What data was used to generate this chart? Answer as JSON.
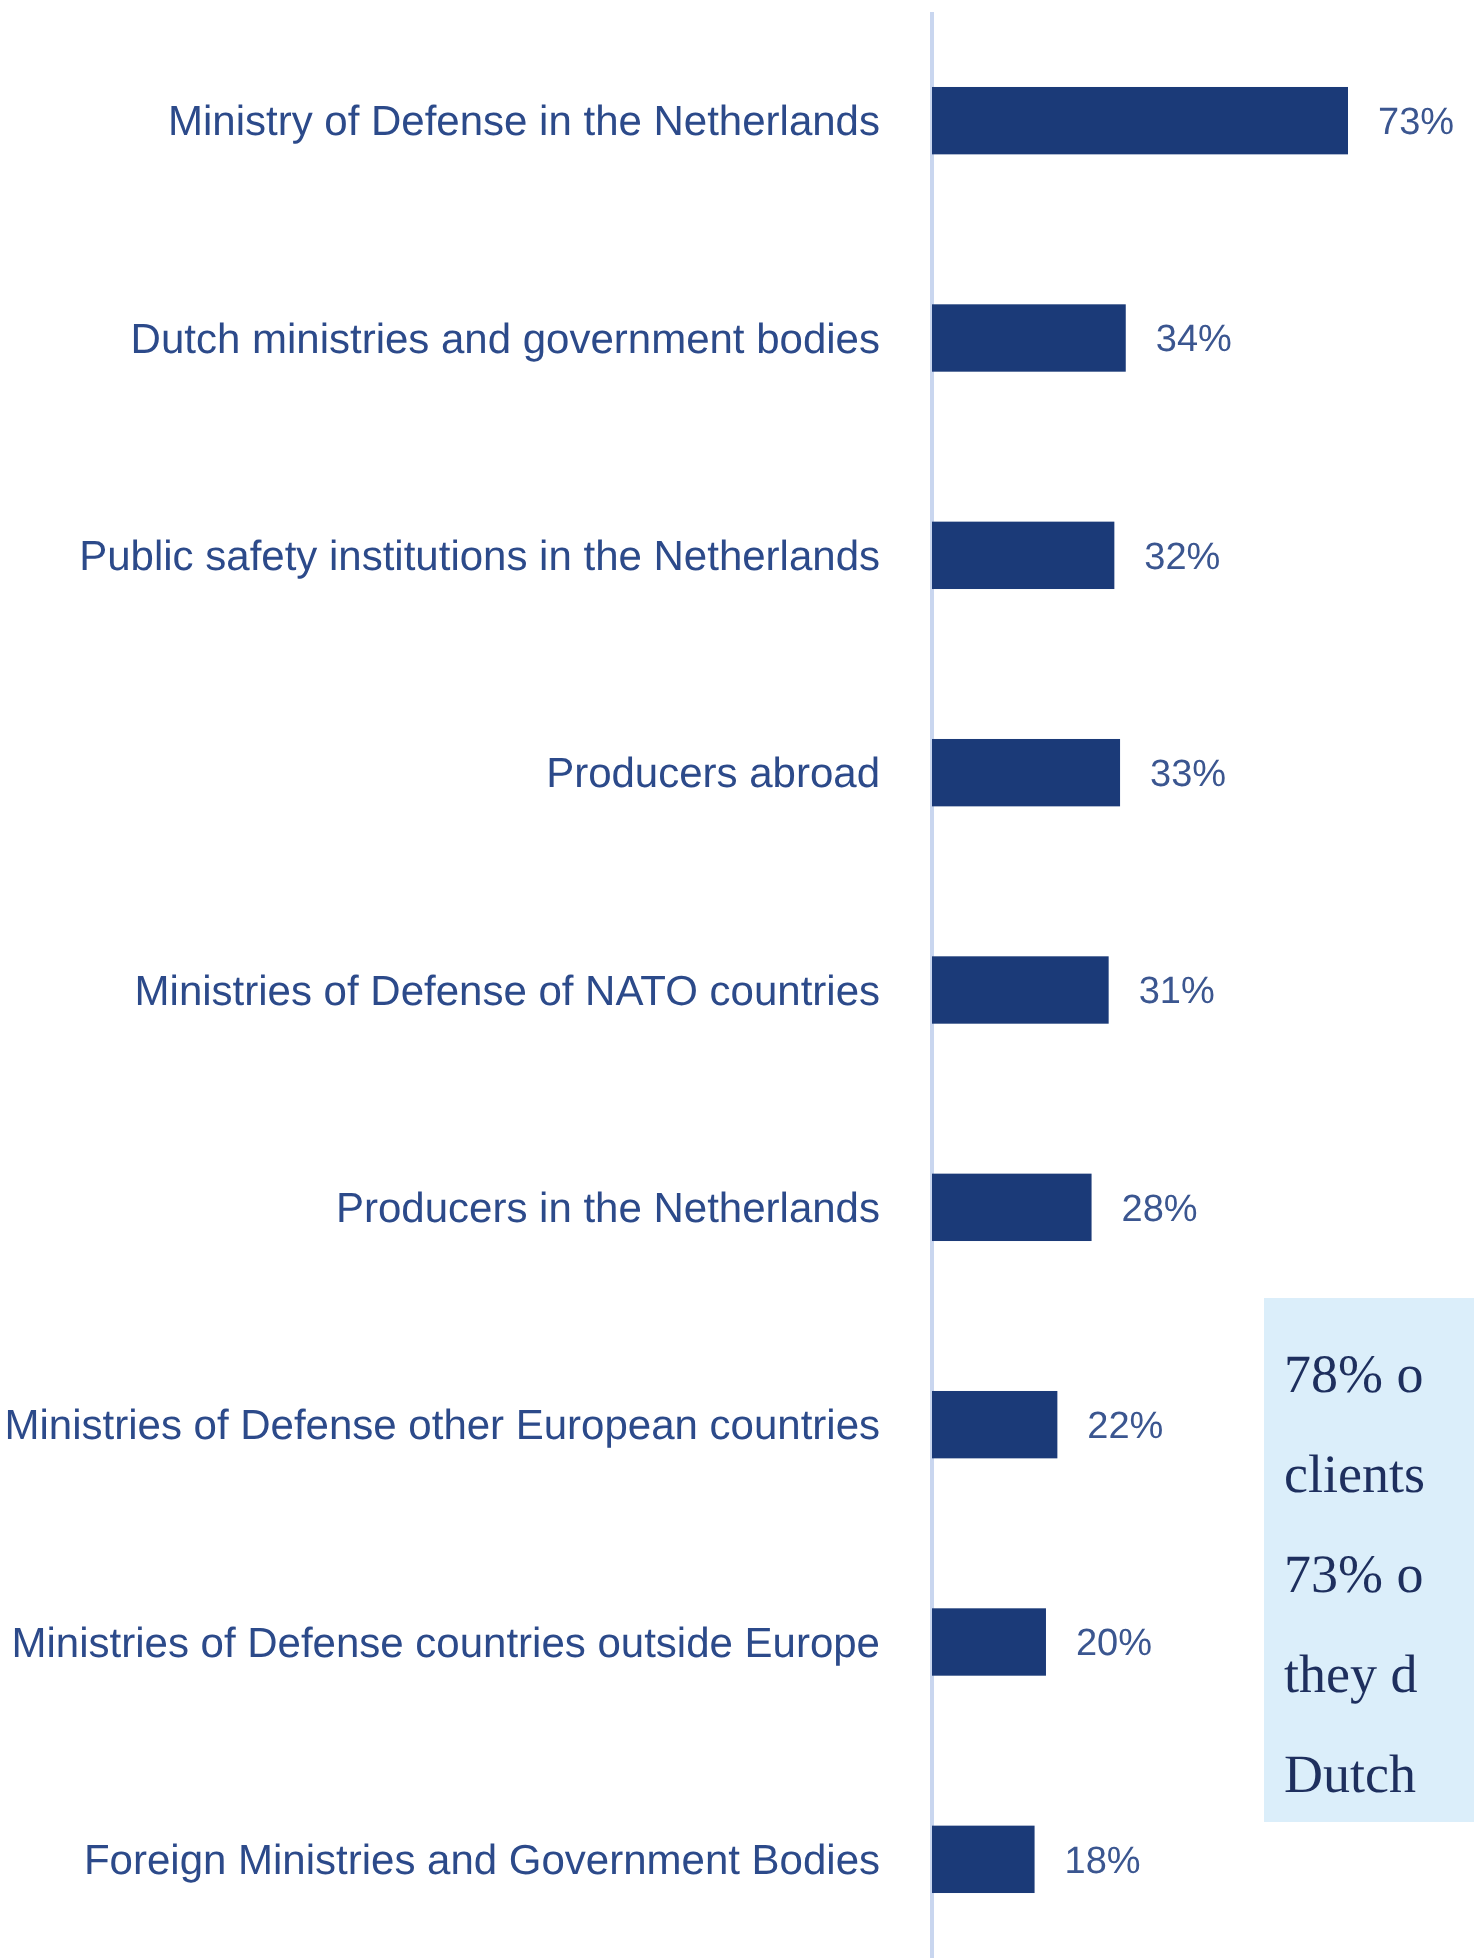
{
  "chart_data": {
    "type": "bar",
    "orientation": "horizontal",
    "categories": [
      "Ministry of Defense in the Netherlands",
      "Dutch ministries and government bodies",
      "Public safety institutions in the Netherlands",
      "Producers abroad",
      "Ministries of Defense of NATO countries",
      "Producers in the Netherlands",
      "Ministries of Defense other European countries",
      "Ministries of Defense countries outside Europe",
      "Foreign Ministries and Government Bodies"
    ],
    "values": [
      73,
      34,
      32,
      33,
      31,
      28,
      22,
      20,
      18
    ],
    "value_labels": [
      "73%",
      "34%",
      "32%",
      "33%",
      "31%",
      "28%",
      "22%",
      "20%",
      "18%"
    ],
    "color": "#1b3a78",
    "annotations": [
      "78% o\nclients\n73% o\nthey d\nDutch"
    ]
  }
}
